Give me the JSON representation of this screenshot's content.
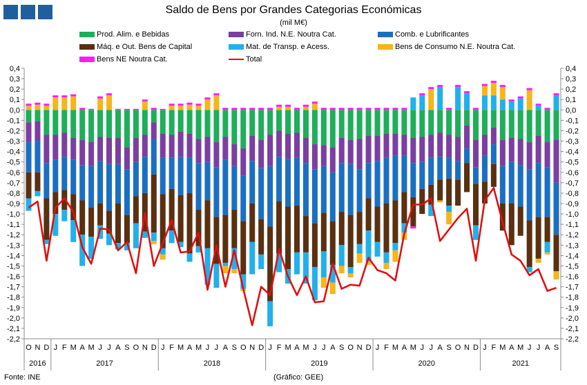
{
  "header": {
    "title": "Saldo de Bens por Grandes Categorias Económicas",
    "unit": "(mil M€)",
    "logo_color": "#1f5fa0"
  },
  "footer": {
    "source": "Fonte: INE",
    "credit": "(Gráfico: GEE)"
  },
  "chart_data": {
    "type": "bar",
    "stacked": true,
    "ylim": [
      -2.2,
      0.4
    ],
    "ytick_step": 0.1,
    "grid": false,
    "legend_position": "top",
    "months": [
      "O",
      "N",
      "D",
      "J",
      "F",
      "M",
      "A",
      "M",
      "J",
      "J",
      "A",
      "S",
      "O",
      "N",
      "D",
      "J",
      "F",
      "M",
      "A",
      "M",
      "J",
      "J",
      "A",
      "S",
      "O",
      "N",
      "D",
      "J",
      "F",
      "M",
      "A",
      "M",
      "J",
      "J",
      "A",
      "S",
      "O",
      "N",
      "D",
      "J",
      "F",
      "M",
      "A",
      "M",
      "J",
      "J",
      "A",
      "S",
      "O",
      "N",
      "D",
      "J",
      "F",
      "M",
      "A",
      "M",
      "J",
      "J",
      "A",
      "S"
    ],
    "years": [
      {
        "label": "2016",
        "months": 3
      },
      {
        "label": "2017",
        "months": 12
      },
      {
        "label": "2018",
        "months": 12
      },
      {
        "label": "2019",
        "months": 12
      },
      {
        "label": "2020",
        "months": 12
      },
      {
        "label": "2021",
        "months": 9
      }
    ],
    "series": [
      {
        "name": "Prod. Alim. e Bebidas",
        "color": "#1fae5a",
        "kind": "bar",
        "values": [
          -0.12,
          -0.11,
          -0.24,
          -0.24,
          -0.22,
          -0.27,
          -0.29,
          -0.31,
          -0.26,
          -0.27,
          -0.27,
          -0.36,
          -0.27,
          -0.24,
          -0.12,
          -0.23,
          -0.24,
          -0.21,
          -0.23,
          -0.28,
          -0.26,
          -0.31,
          -0.26,
          -0.33,
          -0.37,
          -0.25,
          -0.29,
          -0.24,
          -0.2,
          -0.23,
          -0.22,
          -0.27,
          -0.33,
          -0.34,
          -0.36,
          -0.27,
          -0.29,
          -0.28,
          -0.25,
          -0.25,
          -0.23,
          -0.23,
          -0.24,
          -0.27,
          -0.26,
          -0.24,
          -0.22,
          -0.24,
          -0.26,
          -0.15,
          -0.29,
          -0.24,
          -0.17,
          -0.29,
          -0.27,
          -0.28,
          -0.31,
          -0.25,
          -0.31,
          -0.29
        ]
      },
      {
        "name": "Forn. Ind. N.E. Noutra Cat.",
        "color": "#7a3fa0",
        "kind": "bar",
        "values": [
          -0.19,
          -0.19,
          -0.27,
          -0.24,
          -0.23,
          -0.21,
          -0.24,
          -0.23,
          -0.23,
          -0.25,
          -0.25,
          -0.21,
          -0.23,
          -0.21,
          -0.16,
          -0.23,
          -0.22,
          -0.24,
          -0.23,
          -0.23,
          -0.24,
          -0.24,
          -0.22,
          -0.21,
          -0.26,
          -0.24,
          -0.27,
          -0.3,
          -0.25,
          -0.24,
          -0.24,
          -0.24,
          -0.24,
          -0.2,
          -0.24,
          -0.24,
          -0.23,
          -0.29,
          -0.26,
          -0.24,
          -0.23,
          -0.21,
          -0.2,
          -0.24,
          -0.24,
          -0.22,
          -0.23,
          -0.22,
          -0.23,
          -0.22,
          -0.26,
          -0.2,
          -0.16,
          -0.25,
          -0.23,
          -0.25,
          -0.26,
          -0.26,
          -0.24,
          -0.41
        ]
      },
      {
        "name": "Comb. e Lubrificantes",
        "color": "#1b6fc2",
        "kind": "bar",
        "values": [
          -0.29,
          -0.3,
          -0.34,
          -0.31,
          -0.32,
          -0.33,
          -0.34,
          -0.4,
          -0.41,
          -0.45,
          -0.38,
          -0.44,
          -0.33,
          -0.35,
          -0.34,
          -0.35,
          -0.3,
          -0.37,
          -0.34,
          -0.45,
          -0.37,
          -0.48,
          -0.53,
          -0.42,
          -0.44,
          -0.41,
          -0.49,
          -0.58,
          -0.43,
          -0.46,
          -0.46,
          -0.51,
          -0.52,
          -0.45,
          -0.47,
          -0.47,
          -0.49,
          -0.41,
          -0.34,
          -0.44,
          -0.44,
          -0.43,
          -0.35,
          -0.33,
          -0.26,
          -0.26,
          -0.22,
          -0.2,
          -0.18,
          -0.14,
          -0.16,
          -0.25,
          -0.19,
          -0.36,
          -0.4,
          -0.4,
          -0.49,
          -0.52,
          -0.48,
          -0.5
        ]
      },
      {
        "name": "Máq. e Out. Bens de Capital",
        "color": "#5a3010",
        "kind": "bar",
        "values": [
          -0.25,
          -0.18,
          -0.4,
          -0.21,
          -0.19,
          -0.25,
          -0.33,
          -0.28,
          -0.21,
          -0.22,
          -0.38,
          -0.27,
          -0.26,
          -0.37,
          -0.56,
          -0.52,
          -0.4,
          -0.45,
          -0.58,
          -0.35,
          -0.46,
          -0.45,
          -0.46,
          -0.37,
          -0.51,
          -0.37,
          -0.34,
          -0.72,
          -0.5,
          -0.6,
          -0.45,
          -0.35,
          -0.42,
          -0.37,
          -0.42,
          -0.32,
          -0.5,
          -0.31,
          -0.31,
          -0.34,
          -0.47,
          -0.41,
          -0.3,
          -0.28,
          -0.24,
          -0.19,
          -0.2,
          -0.26,
          -0.25,
          -0.28,
          -0.4,
          -0.21,
          -0.22,
          -0.26,
          -0.4,
          -0.28,
          -0.45,
          -0.4,
          -0.24,
          -0.35
        ]
      },
      {
        "name": "Mat. de Transp. e Acess.",
        "color": "#22b0ec",
        "kind": "bar",
        "values": [
          -0.12,
          -0.05,
          -0.04,
          -0.21,
          -0.11,
          -0.21,
          -0.3,
          -0.21,
          -0.13,
          -0.11,
          -0.06,
          -0.07,
          -0.24,
          -0.06,
          -0.08,
          -0.06,
          -0.12,
          -0.05,
          -0.08,
          -0.06,
          -0.35,
          -0.23,
          -0.03,
          -0.2,
          -0.14,
          -0.31,
          -0.14,
          -0.24,
          -0.18,
          -0.14,
          -0.21,
          -0.3,
          -0.32,
          -0.25,
          -0.17,
          -0.2,
          -0.06,
          -0.09,
          -0.3,
          -0.14,
          -0.1,
          -0.07,
          -0.09,
          0.12,
          0.14,
          -0.11,
          0.22,
          -0.06,
          0.22,
          0.16,
          -0.14,
          0.14,
          0.14,
          0.1,
          0.08,
          0.11,
          -0.05,
          0.04,
          -0.1,
          0.14
        ]
      },
      {
        "name": "Bens de Consumo N.E. Noutra Cat.",
        "color": "#f5b51c",
        "kind": "bar",
        "values": [
          0.04,
          0.05,
          0.04,
          0.12,
          0.12,
          0.13,
          0.0,
          0.0,
          0.11,
          0.14,
          0.0,
          0.0,
          0.0,
          0.08,
          -0.03,
          -0.05,
          0.04,
          0.04,
          0.05,
          0.04,
          0.1,
          0.14,
          -0.07,
          -0.04,
          -0.02,
          0.0,
          0.0,
          0.0,
          0.03,
          0.03,
          0.0,
          0.03,
          0.06,
          -0.1,
          -0.11,
          -0.07,
          -0.04,
          -0.09,
          -0.03,
          0.0,
          -0.06,
          -0.11,
          -0.07,
          0.0,
          0.0,
          0.2,
          -0.02,
          -0.12,
          0.0,
          0.0,
          0.0,
          0.09,
          0.12,
          0.12,
          0.0,
          0.0,
          0.19,
          -0.04,
          -0.02,
          -0.08
        ]
      },
      {
        "name": "Bens NE Noutra Cat.",
        "color": "#ff1aff",
        "kind": "bar",
        "values": [
          0.02,
          0.02,
          0.02,
          0.02,
          0.02,
          0.02,
          0.02,
          0.01,
          0.02,
          0.02,
          0.01,
          0.01,
          0.01,
          0.02,
          0.02,
          0.01,
          0.02,
          0.02,
          0.02,
          0.02,
          0.02,
          0.02,
          0.02,
          0.02,
          0.02,
          0.02,
          0.02,
          0.02,
          0.02,
          0.02,
          0.02,
          0.02,
          0.02,
          0.02,
          0.02,
          0.02,
          0.02,
          0.02,
          0.02,
          0.02,
          0.02,
          0.02,
          0.02,
          -0.02,
          0.02,
          0.02,
          0.02,
          0.02,
          0.02,
          0.02,
          0.02,
          0.02,
          0.02,
          0.02,
          0.02,
          0.02,
          0.02,
          0.02,
          0.02,
          0.02
        ]
      },
      {
        "name": "Total",
        "color": "#e01010",
        "kind": "line",
        "values": [
          -0.94,
          -0.88,
          -1.45,
          -0.94,
          -0.85,
          -0.98,
          -1.32,
          -1.48,
          -1.14,
          -1.15,
          -1.35,
          -1.27,
          -1.57,
          -0.99,
          -1.5,
          -1.28,
          -1.06,
          -1.37,
          -1.36,
          -1.18,
          -1.73,
          -1.3,
          -1.7,
          -1.35,
          -1.72,
          -2.07,
          -1.7,
          -1.78,
          -1.34,
          -1.6,
          -1.78,
          -1.6,
          -1.85,
          -1.84,
          -1.48,
          -1.72,
          -1.68,
          -1.69,
          -1.42,
          -1.54,
          -1.57,
          -1.64,
          -1.19,
          -0.91,
          -0.91,
          -0.85,
          -1.26,
          -1.15,
          -1.04,
          -0.95,
          -1.45,
          -0.87,
          -0.75,
          -1.08,
          -1.39,
          -1.45,
          -1.59,
          -1.53,
          -1.74,
          -1.71
        ]
      }
    ]
  }
}
